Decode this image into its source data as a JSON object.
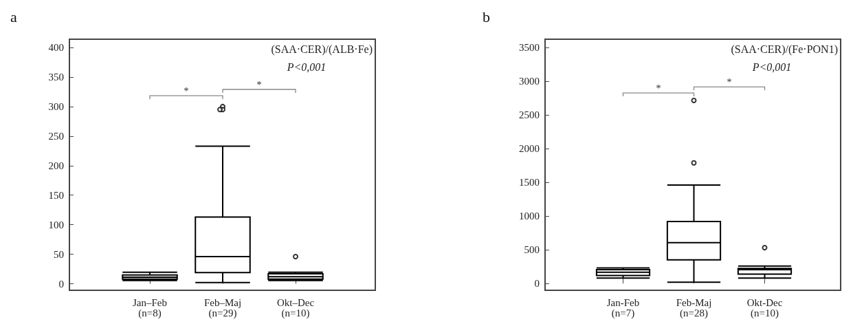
{
  "chart_data": [
    {
      "type": "box",
      "title": "a",
      "categories": [
        "Jan–Feb\n(n=8)",
        "Feb–Maj\n(n=29)",
        "Okt–Dec\n(n=10)"
      ],
      "series": [
        {
          "color": "#000000",
          "boxes": [
            {
              "low": 5.5,
              "q1": 8,
              "median": 11,
              "q3": 15,
              "high": 19.6
            },
            {
              "low": 2,
              "q1": 19,
              "median": 46,
              "q3": 113,
              "high": 233,
              "outliers": [
                300,
                295,
                295
              ]
            },
            {
              "low": 5.5,
              "q1": 8,
              "median": 12,
              "q3": 17,
              "high": 19.6,
              "outliers": [
                46
              ]
            }
          ]
        }
      ],
      "ylim": [
        -11,
        414
      ],
      "yticks": [
        0,
        50,
        100,
        150,
        200,
        250,
        300,
        350,
        400
      ],
      "annotations": [
        "(SAA·CER)/(ALB·Fe)",
        "P<0,001",
        "*",
        "*"
      ]
    },
    {
      "type": "box",
      "title": "b",
      "categories": [
        "Jan-Feb\n(n=7)",
        "Feb-Maj\n(n=28)",
        "Okt-Dec\n(n=10)"
      ],
      "series": [
        {
          "color": "#000000",
          "boxes": [
            {
              "low": 80,
              "q1": 120,
              "median": 168,
              "q3": 207,
              "high": 231
            },
            {
              "low": 20,
              "q1": 351,
              "median": 607,
              "q3": 918,
              "high": 1460,
              "outliers": [
                2713,
                1788
              ]
            },
            {
              "low": 80,
              "q1": 140,
              "median": 205,
              "q3": 223,
              "high": 259,
              "outliers": [
                531
              ]
            }
          ]
        }
      ],
      "ylim": [
        -100,
        3620
      ],
      "yticks": [
        0,
        500,
        1000,
        1500,
        2000,
        2500,
        3000,
        3500
      ],
      "annotations": [
        "(SAA·CER)/(Fe·PON1)",
        "P<0,001",
        "*",
        "*"
      ]
    }
  ]
}
